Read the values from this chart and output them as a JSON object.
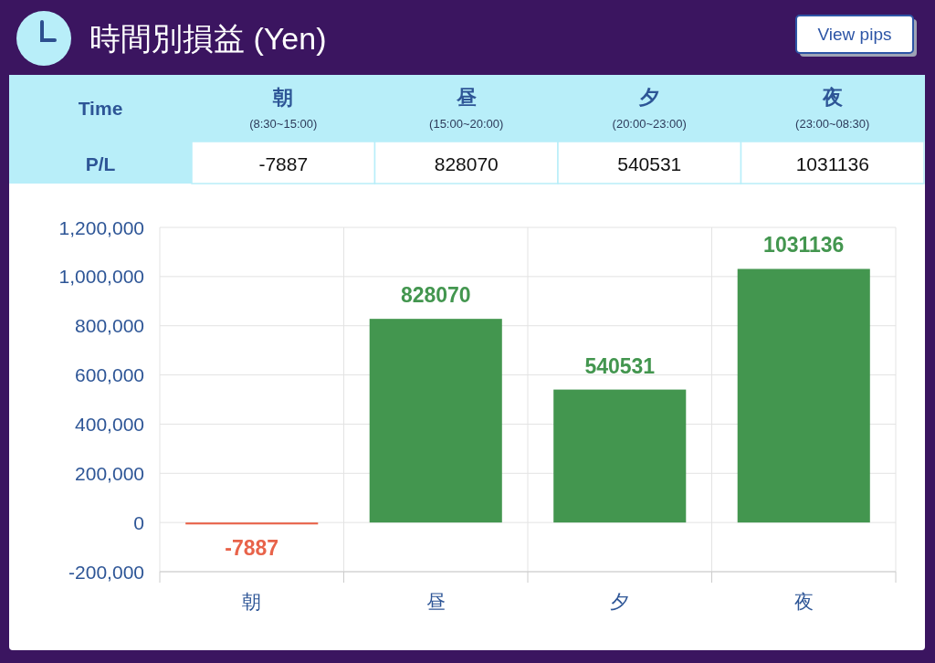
{
  "chart_data": {
    "type": "bar",
    "title": "時間別損益 (Yen)",
    "categories": [
      "朝",
      "昼",
      "夕",
      "夜"
    ],
    "values": [
      -7887,
      828070,
      540531,
      1031136
    ],
    "colors": [
      "#e8634a",
      "#43964f",
      "#43964f",
      "#43964f"
    ],
    "ylim": [
      -200000,
      1200000
    ],
    "yticks": [
      {
        "value": -200000,
        "label": "-200,000"
      },
      0,
      {
        "value": 200000,
        "label": "200,000"
      },
      {
        "value": 400000,
        "label": "400,000"
      },
      {
        "value": 600000,
        "label": "600,000"
      },
      {
        "value": 800000,
        "label": "800,000"
      },
      {
        "value": 1000000,
        "label": "1,000,000"
      },
      {
        "value": 1200000,
        "label": "1,200,000"
      }
    ],
    "grid": true,
    "value_labels": [
      "-7887",
      "828070",
      "540531",
      "1031136"
    ],
    "annotations": [
      "View pips",
      "Time",
      "P/L",
      "(8:30~15:00)",
      "(15:00~20:00)",
      "(20:00~23:00)",
      "(23:00~08:30)",
      "-7887",
      "828070",
      "540531",
      "1031136"
    ]
  }
}
